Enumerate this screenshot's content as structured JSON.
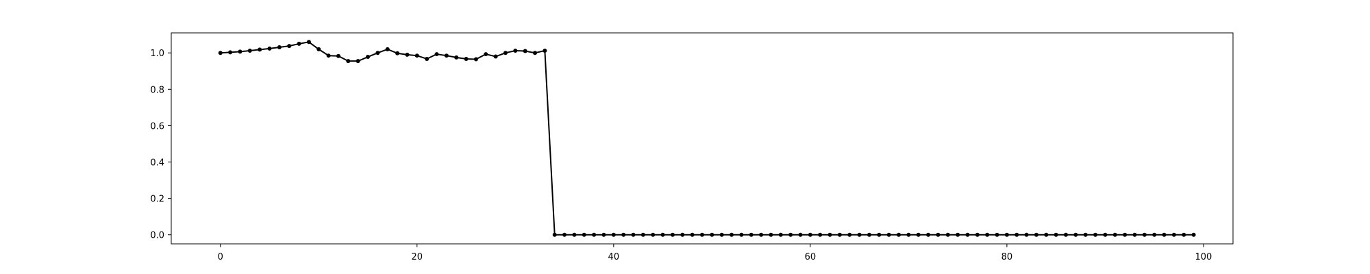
{
  "chart_data": {
    "type": "line",
    "title": "",
    "xlabel": "",
    "ylabel": "",
    "xlim": [
      -5,
      103
    ],
    "ylim": [
      -0.05,
      1.11
    ],
    "x_ticks": [
      0,
      20,
      40,
      60,
      80,
      100
    ],
    "y_ticks": [
      0.0,
      0.2,
      0.4,
      0.6,
      0.8,
      1.0
    ],
    "x_tick_labels": [
      "0",
      "20",
      "40",
      "60",
      "80",
      "100"
    ],
    "y_tick_labels": [
      "0.0",
      "0.2",
      "0.4",
      "0.6",
      "0.8",
      "1.0"
    ],
    "grid": false,
    "legend": "none",
    "series": [
      {
        "color": "#000000",
        "marker": "point",
        "x": [
          0,
          1,
          2,
          3,
          4,
          5,
          6,
          7,
          8,
          9,
          10,
          11,
          12,
          13,
          14,
          15,
          16,
          17,
          18,
          19,
          20,
          21,
          22,
          23,
          24,
          25,
          26,
          27,
          28,
          29,
          30,
          31,
          32,
          33,
          34,
          35,
          36,
          37,
          38,
          39,
          40,
          41,
          42,
          43,
          44,
          45,
          46,
          47,
          48,
          49,
          50,
          51,
          52,
          53,
          54,
          55,
          56,
          57,
          58,
          59,
          60,
          61,
          62,
          63,
          64,
          65,
          66,
          67,
          68,
          69,
          70,
          71,
          72,
          73,
          74,
          75,
          76,
          77,
          78,
          79,
          80,
          81,
          82,
          83,
          84,
          85,
          86,
          87,
          88,
          89,
          90,
          91,
          92,
          93,
          94,
          95,
          96,
          97,
          98,
          99
        ],
        "values": [
          1.0,
          1.003,
          1.007,
          1.012,
          1.018,
          1.024,
          1.031,
          1.038,
          1.05,
          1.06,
          1.02,
          0.985,
          0.983,
          0.955,
          0.955,
          0.978,
          1.0,
          1.02,
          0.998,
          0.99,
          0.985,
          0.967,
          0.993,
          0.985,
          0.975,
          0.967,
          0.965,
          0.993,
          0.98,
          1.0,
          1.012,
          1.01,
          1.0,
          1.012,
          0,
          0,
          0,
          0,
          0,
          0,
          0,
          0,
          0,
          0,
          0,
          0,
          0,
          0,
          0,
          0,
          0,
          0,
          0,
          0,
          0,
          0,
          0,
          0,
          0,
          0,
          0,
          0,
          0,
          0,
          0,
          0,
          0,
          0,
          0,
          0,
          0,
          0,
          0,
          0,
          0,
          0,
          0,
          0,
          0,
          0,
          0,
          0,
          0,
          0,
          0,
          0,
          0,
          0,
          0,
          0,
          0,
          0,
          0,
          0,
          0,
          0,
          0,
          0,
          0,
          0
        ]
      }
    ]
  }
}
